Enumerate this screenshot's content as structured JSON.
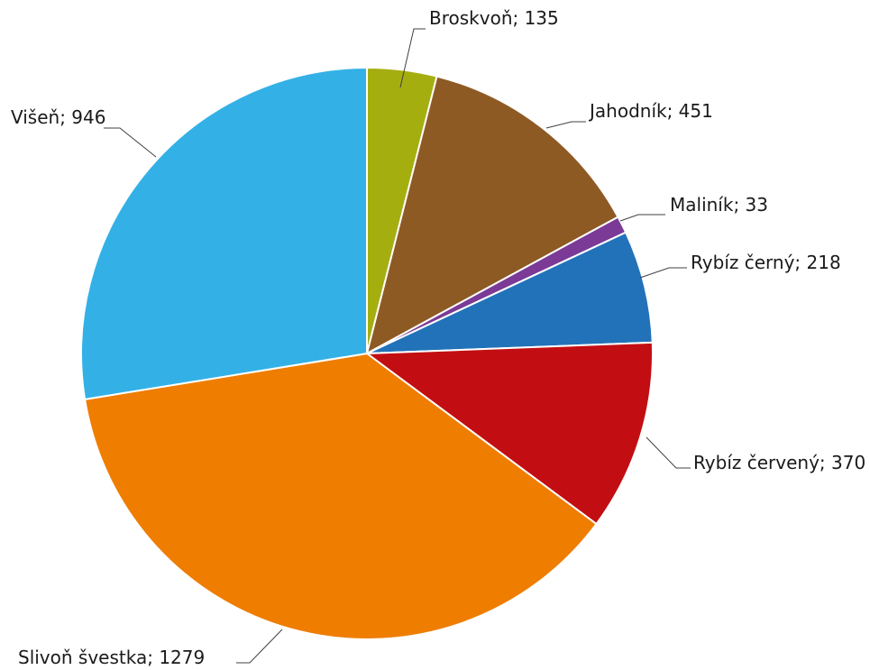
{
  "chart_data": {
    "type": "pie",
    "title": "",
    "start_angle_deg": 0,
    "direction": "clockwise",
    "slices": [
      {
        "label": "Broskvoň",
        "value": 135,
        "display": "Broskvoň; 135",
        "color": "#a5ae0f"
      },
      {
        "label": "Jahodník",
        "value": 451,
        "display": "Jahodník; 451",
        "color": "#8e5a24"
      },
      {
        "label": "Maliník",
        "value": 33,
        "display": "Maliník; 33",
        "color": "#7a3a96"
      },
      {
        "label": "Rybíz černý",
        "value": 218,
        "display": "Rybíz černý; 218",
        "color": "#2272b9"
      },
      {
        "label": "Rybíz červený",
        "value": 370,
        "display": "Rybíz červený; 370",
        "color": "#c20e12"
      },
      {
        "label": "Slivoň švestka",
        "value": 1279,
        "display": "Slivoň švestka; 1279",
        "color": "#ef7d00"
      },
      {
        "label": "Višeň",
        "value": 946,
        "display": "Višeň; 946",
        "color": "#33b1e6"
      }
    ]
  }
}
